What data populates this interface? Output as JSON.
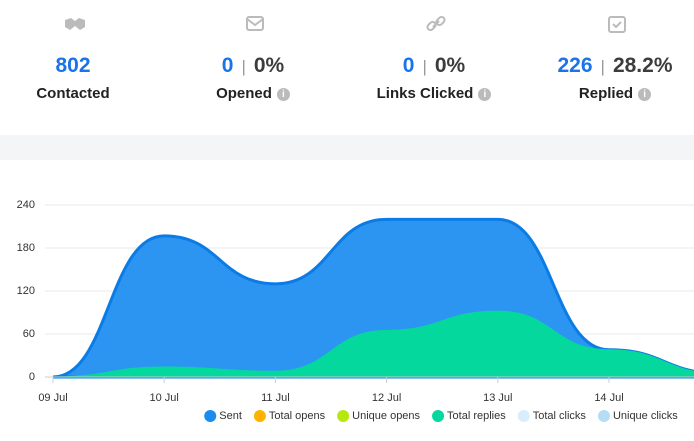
{
  "stats": [
    {
      "value": 802,
      "label": "Contacted",
      "info": false
    },
    {
      "value": 0,
      "percent": "0%",
      "label": "Opened",
      "info": true
    },
    {
      "value": 0,
      "percent": "0%",
      "label": "Links Clicked",
      "info": true
    },
    {
      "value": 226,
      "percent": "28.2%",
      "label": "Replied",
      "info": true
    }
  ],
  "chart_data": {
    "type": "area",
    "categories": [
      "09 Jul",
      "10 Jul",
      "11 Jul",
      "12 Jul",
      "13 Jul",
      "14 Jul",
      null
    ],
    "series": [
      {
        "name": "Sent",
        "color": "#1a8cf0",
        "values": [
          0,
          197,
          130,
          220,
          220,
          38,
          5
        ]
      },
      {
        "name": "Total opens",
        "color": "#ffb300",
        "values": [
          0,
          0,
          0,
          0,
          0,
          0,
          0
        ]
      },
      {
        "name": "Unique opens",
        "color": "#b8e60f",
        "values": [
          0,
          0,
          0,
          0,
          0,
          0,
          0
        ]
      },
      {
        "name": "Total replies",
        "color": "#05d89c",
        "values": [
          0,
          14,
          8,
          65,
          92,
          38,
          5
        ]
      },
      {
        "name": "Total clicks",
        "color": "#d8eefc",
        "values": [
          0,
          0,
          0,
          0,
          0,
          0,
          0
        ]
      },
      {
        "name": "Unique clicks",
        "color": "#b3def6",
        "values": [
          0,
          0,
          0,
          0,
          0,
          0,
          0
        ]
      }
    ],
    "ylim": [
      0,
      240
    ],
    "yticks": [
      0,
      60,
      120,
      180,
      240
    ],
    "grid": true
  }
}
